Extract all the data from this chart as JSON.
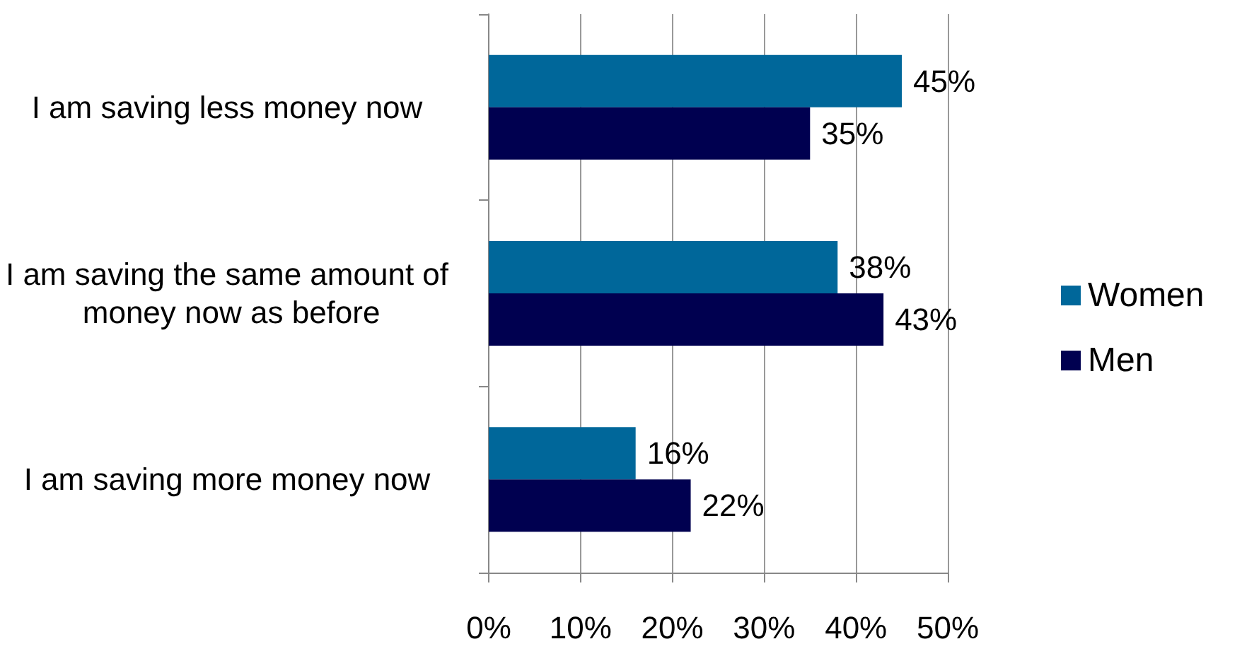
{
  "chart_data": {
    "type": "bar",
    "orientation": "horizontal",
    "categories": [
      "I am saving less money now",
      "I am saving the same amount of money now as before",
      "I am saving more money now"
    ],
    "series": [
      {
        "name": "Women",
        "color": "#00679a",
        "values": [
          45,
          38,
          16
        ],
        "value_labels": [
          "45%",
          "38%",
          "16%"
        ]
      },
      {
        "name": "Men",
        "color": "#000050",
        "values": [
          35,
          43,
          22
        ],
        "value_labels": [
          "35%",
          "43%",
          "22%"
        ]
      }
    ],
    "xlim": [
      0,
      50
    ],
    "xticks": [
      {
        "value": 0,
        "label": "0%"
      },
      {
        "value": 10,
        "label": "10%"
      },
      {
        "value": 20,
        "label": "20%"
      },
      {
        "value": 30,
        "label": "30%"
      },
      {
        "value": 40,
        "label": "40%"
      },
      {
        "value": 50,
        "label": "50%"
      }
    ],
    "grid": "x",
    "legend": "right"
  }
}
